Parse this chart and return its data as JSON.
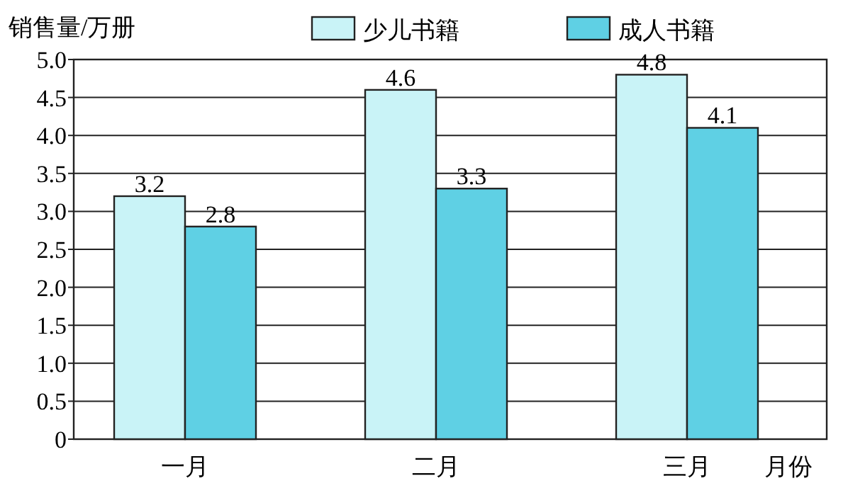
{
  "chart_data": {
    "type": "bar",
    "ylabel": "销售量/万册",
    "xlabel": "月份",
    "categories": [
      "一月",
      "二月",
      "三月"
    ],
    "series": [
      {
        "name": "少儿书籍",
        "color": "#c9f3f7",
        "values": [
          3.2,
          4.6,
          4.8
        ]
      },
      {
        "name": "成人书籍",
        "color": "#5fd0e4",
        "values": [
          2.8,
          3.3,
          4.1
        ]
      }
    ],
    "ylim": [
      0,
      5
    ],
    "yticks": [
      "0",
      "0.5",
      "1.0",
      "1.5",
      "2.0",
      "2.5",
      "3.0",
      "3.5",
      "4.0",
      "4.5",
      "5.0"
    ],
    "grid": "y",
    "legend": "top",
    "data_labels": true
  }
}
